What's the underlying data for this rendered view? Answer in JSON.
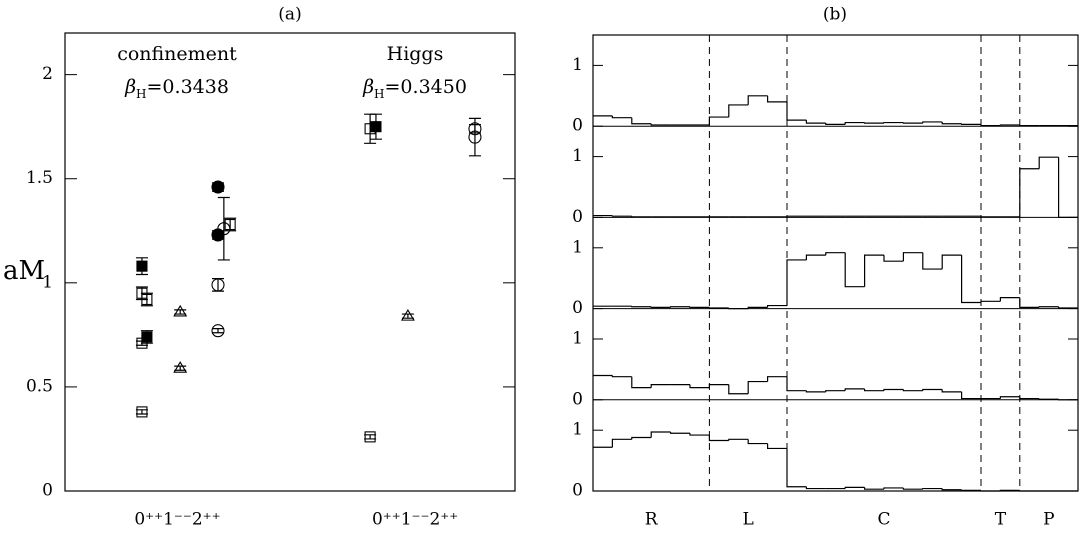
{
  "chart_data": [
    {
      "type": "scatter",
      "title": "(a)",
      "ylabel": "aM",
      "xlim": [
        0,
        100
      ],
      "ylim": [
        0,
        2.2
      ],
      "yticks": [
        0,
        0.5,
        1,
        1.5,
        2
      ],
      "xticks": [
        {
          "value": 25,
          "label": "0⁺⁺1⁻⁻2⁺⁺"
        },
        {
          "value": 77.8,
          "label": "0⁺⁺1⁻⁻2⁺⁺"
        }
      ],
      "annotations": [
        {
          "text": "confinement"
        },
        {
          "symbol": "β",
          "subscript": "H",
          "text": "=0.3438"
        },
        {
          "text": "Higgs"
        },
        {
          "symbol": "β",
          "subscript": "H",
          "text": "=0.3450"
        }
      ],
      "series": [
        {
          "marker": "square",
          "filled": false,
          "color": "#000000",
          "x": [
            17.1,
            17.1,
            17.1,
            18.2,
            36.7,
            67.8,
            67.8
          ],
          "values": [
            0.38,
            0.71,
            0.95,
            0.92,
            1.28,
            0.26,
            1.74
          ],
          "errors": [
            0.01,
            0.01,
            0.03,
            0.03,
            0.03,
            0.01,
            0.07
          ]
        },
        {
          "marker": "square",
          "filled": true,
          "color": "#000000",
          "x": [
            17.1,
            18.2,
            69.1
          ],
          "values": [
            1.08,
            0.74,
            1.75
          ],
          "errors": [
            0.04,
            0.03,
            0.06
          ]
        },
        {
          "marker": "triangle",
          "filled": false,
          "color": "#000000",
          "x": [
            25.6,
            25.6,
            76.2
          ],
          "values": [
            0.86,
            0.59,
            0.84
          ],
          "errors": [
            0.01,
            0.01,
            0.01
          ]
        },
        {
          "marker": "circle",
          "filled": true,
          "color": "#000000",
          "x": [
            34,
            34
          ],
          "values": [
            1.23,
            1.46
          ],
          "errors": [
            0.02,
            0.02
          ]
        },
        {
          "marker": "circle",
          "filled": false,
          "color": "#000000",
          "x": [
            34,
            34,
            35.3,
            91.1,
            91.1
          ],
          "values": [
            0.99,
            0.77,
            1.26,
            1.7,
            1.74
          ],
          "errors": [
            0.03,
            0.01,
            0.15,
            0.09,
            0.02
          ]
        }
      ]
    },
    {
      "type": "step",
      "title": "(b)",
      "color": "#000000",
      "bins": [
        0,
        1,
        2,
        3,
        4,
        5,
        6,
        7,
        8,
        9,
        10,
        11,
        12,
        13,
        14,
        15,
        16,
        17,
        18,
        19,
        20,
        21,
        22,
        23,
        24,
        25
      ],
      "xlim": [
        0,
        25
      ],
      "regions": [
        {
          "label": "R",
          "start": 0,
          "end": 6
        },
        {
          "label": "L",
          "start": 6,
          "end": 10
        },
        {
          "label": "C",
          "start": 10,
          "end": 20
        },
        {
          "label": "T",
          "start": 20,
          "end": 22
        },
        {
          "label": "P",
          "start": 22,
          "end": 25
        }
      ],
      "panels": [
        {
          "ylim": [
            0,
            1.5
          ],
          "yticks": [
            0,
            1
          ],
          "values": [
            0.17,
            0.14,
            0.04,
            0.02,
            0.02,
            0.02,
            0.15,
            0.35,
            0.5,
            0.4,
            0.1,
            0.05,
            0.03,
            0.06,
            0.05,
            0.06,
            0.05,
            0.07,
            0.04,
            0.03,
            0.01,
            0.02,
            0.01,
            0.01,
            0.01
          ]
        },
        {
          "ylim": [
            0,
            1.5
          ],
          "yticks": [
            0,
            1
          ],
          "values": [
            0.03,
            0.02,
            0.01,
            0.01,
            0.01,
            0.01,
            0.01,
            0.01,
            0.01,
            0.01,
            0.02,
            0.02,
            0.02,
            0.02,
            0.02,
            0.02,
            0.02,
            0.02,
            0.02,
            0.02,
            0.01,
            0.01,
            0.8,
            0.99,
            0
          ]
        },
        {
          "ylim": [
            0,
            1.5
          ],
          "yticks": [
            0,
            1
          ],
          "values": [
            0.04,
            0.04,
            0.03,
            0.02,
            0.03,
            0.02,
            0.01,
            0,
            0.02,
            0.05,
            0.8,
            0.88,
            0.92,
            0.36,
            0.88,
            0.78,
            0.92,
            0.65,
            0.88,
            0.1,
            0.12,
            0.18,
            0.02,
            0.03,
            0.01
          ]
        },
        {
          "ylim": [
            0,
            1.5
          ],
          "yticks": [
            0,
            1
          ],
          "values": [
            0.4,
            0.38,
            0.2,
            0.25,
            0.25,
            0.2,
            0.25,
            0.1,
            0.3,
            0.38,
            0.15,
            0.13,
            0.15,
            0.18,
            0.15,
            0.17,
            0.15,
            0.17,
            0.13,
            0.02,
            0.02,
            0.05,
            0.02,
            0.01,
            0
          ]
        },
        {
          "ylim": [
            0,
            1.5
          ],
          "yticks": [
            0,
            1
          ],
          "values": [
            0.72,
            0.85,
            0.88,
            0.97,
            0.95,
            0.92,
            0.83,
            0.85,
            0.78,
            0.7,
            0.07,
            0.04,
            0.04,
            0.06,
            0.03,
            0.05,
            0.03,
            0.04,
            0.02,
            0.01,
            0,
            0.01,
            0,
            0,
            0
          ]
        }
      ]
    }
  ]
}
